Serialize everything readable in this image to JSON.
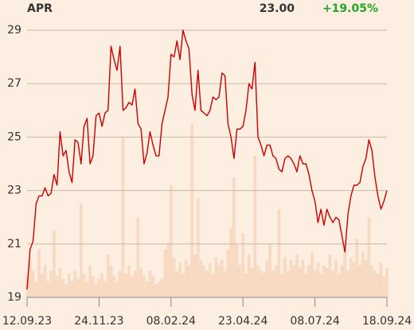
{
  "chart_data": {
    "type": "line",
    "title": "APR",
    "last_value": "23.00",
    "change": "+19.05%",
    "change_color": "#22a722",
    "xlim": [
      0,
      120
    ],
    "xticks": [
      {
        "value": 0,
        "label": "12.09.23"
      },
      {
        "value": 24,
        "label": "24.11.23"
      },
      {
        "value": 48,
        "label": "08.02.24"
      },
      {
        "value": 72,
        "label": "23.04.24"
      },
      {
        "value": 96,
        "label": "08.07.24"
      },
      {
        "value": 120,
        "label": "18.09.24"
      }
    ],
    "ylim": [
      19,
      29
    ],
    "yticks": [
      19,
      21,
      23,
      25,
      27,
      29
    ],
    "y2lim": [
      0,
      100
    ],
    "grid": true,
    "series": [
      {
        "name": "Price",
        "color": "#cc0000",
        "values": [
          19.3,
          20.8,
          21.1,
          22.5,
          22.8,
          22.8,
          23.1,
          22.8,
          22.9,
          23.6,
          23.2,
          25.2,
          24.3,
          24.5,
          23.7,
          23.3,
          24.9,
          24.8,
          24.0,
          25.4,
          25.7,
          24.0,
          24.3,
          25.8,
          25.9,
          25.4,
          25.9,
          26.0,
          28.4,
          27.9,
          27.5,
          28.4,
          26.0,
          26.1,
          26.3,
          26.2,
          26.8,
          25.5,
          25.3,
          24.0,
          24.4,
          25.2,
          24.7,
          24.3,
          24.3,
          25.5,
          26.0,
          26.5,
          28.1,
          28.0,
          28.6,
          27.9,
          29.0,
          28.6,
          28.3,
          26.6,
          26.0,
          27.5,
          26.0,
          25.9,
          25.8,
          26.0,
          26.5,
          26.4,
          26.5,
          27.4,
          27.3,
          25.5,
          25.0,
          24.2,
          25.3,
          25.3,
          25.4,
          26.0,
          27.0,
          26.8,
          27.8,
          25.0,
          24.7,
          24.3,
          24.7,
          24.7,
          24.3,
          24.2,
          23.8,
          23.7,
          24.2,
          24.3,
          24.2,
          24.0,
          23.7,
          24.3,
          24.0,
          24.0,
          23.6,
          23.0,
          22.6,
          21.8,
          22.3,
          21.7,
          22.3,
          22.0,
          21.8,
          22.0,
          21.9,
          21.3,
          20.7,
          22.1,
          22.8,
          23.2,
          23.2,
          23.3,
          23.9,
          24.2,
          24.9,
          24.5,
          23.5,
          22.8,
          22.3,
          22.6,
          23.0
        ]
      },
      {
        "name": "Volume",
        "axis": "y2",
        "color": "#f8d9c2",
        "values": [
          8,
          14,
          10,
          6,
          18,
          9,
          12,
          6,
          10,
          25,
          8,
          11,
          7,
          5,
          9,
          6,
          10,
          7,
          35,
          9,
          6,
          12,
          8,
          5,
          7,
          9,
          6,
          16,
          12,
          8,
          6,
          10,
          60,
          9,
          12,
          8,
          10,
          30,
          11,
          8,
          6,
          10,
          8,
          5,
          6,
          7,
          18,
          20,
          42,
          15,
          10,
          13,
          9,
          14,
          12,
          65,
          16,
          37,
          14,
          12,
          10,
          13,
          9,
          15,
          12,
          14,
          10,
          18,
          26,
          45,
          20,
          12,
          24,
          9,
          16,
          11,
          53,
          12,
          10,
          9,
          14,
          20,
          10,
          12,
          33,
          9,
          15,
          10,
          14,
          12,
          16,
          11,
          14,
          9,
          12,
          17,
          10,
          13,
          9,
          12,
          11,
          16,
          10,
          14,
          9,
          12,
          18,
          10,
          15,
          13,
          22,
          12,
          17,
          14,
          30,
          12,
          10,
          9,
          13,
          8,
          11
        ]
      }
    ]
  }
}
